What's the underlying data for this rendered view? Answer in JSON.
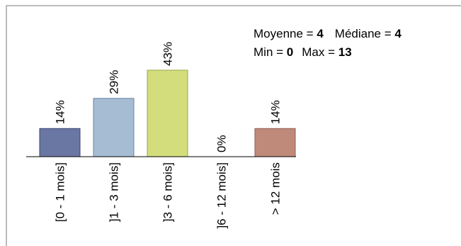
{
  "chart_data": {
    "type": "bar",
    "categories": [
      "[0 - 1 mois]",
      "]1 - 3 mois]",
      "]3 - 6 mois]",
      "]6 - 12 mois]",
      "> 12 mois"
    ],
    "values": [
      14,
      29,
      43,
      0,
      14
    ],
    "value_labels": [
      "14%",
      "29%",
      "43%",
      "0%",
      "14%"
    ],
    "unit": "%",
    "ylim": [
      0,
      45
    ],
    "colors": [
      "#6b77a3",
      "#a5bcd3",
      "#d4dd7c",
      "#c5c5c5",
      "#c08a7a"
    ],
    "edge_colors": [
      "#3b4673",
      "#6d85a0",
      "#9aa54a",
      "#8c8c8c",
      "#8f5e4f"
    ],
    "grid": false,
    "legend": "none"
  },
  "stats": {
    "moyenne_label": "Moyenne = ",
    "moyenne_value": "4",
    "mediane_label": "Médiane = ",
    "mediane_value": "4",
    "min_label": "Min = ",
    "min_value": "0",
    "max_label": "Max = ",
    "max_value": "13"
  }
}
